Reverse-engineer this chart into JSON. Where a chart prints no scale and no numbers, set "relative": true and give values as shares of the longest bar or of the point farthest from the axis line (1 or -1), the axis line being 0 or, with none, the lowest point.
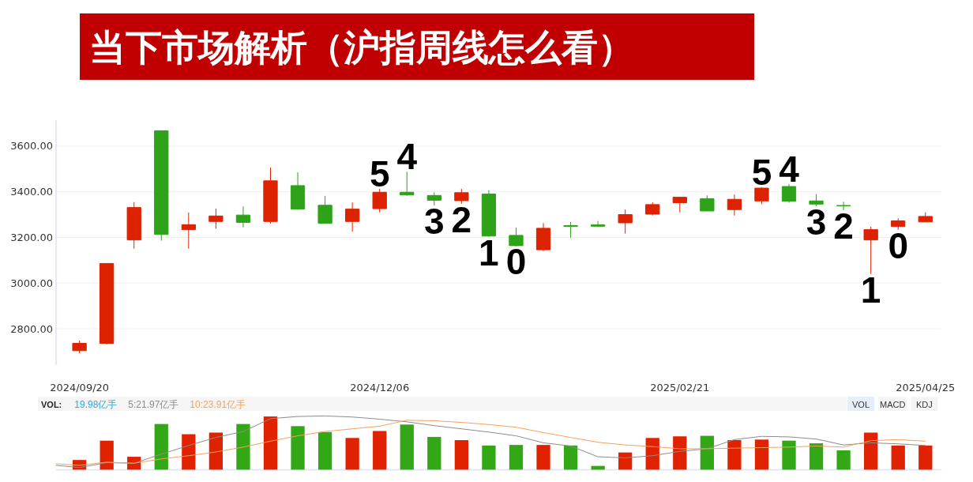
{
  "chart_data": [
    {
      "type": "candlestick",
      "title": "当下市场解析（沪指周线怎么看）",
      "x": [
        "2024-09-20",
        "2024-09-27",
        "2024-10-04",
        "2024-10-11",
        "2024-10-18",
        "2024-10-25",
        "2024-11-01",
        "2024-11-08",
        "2024-11-15",
        "2024-11-22",
        "2024-11-29",
        "2024-12-06",
        "2024-12-13",
        "2024-12-20",
        "2024-12-27",
        "2025-01-03",
        "2025-01-10",
        "2025-01-17",
        "2025-01-24",
        "2025-01-31",
        "2025-02-07",
        "2025-02-14",
        "2025-02-21",
        "2025-02-28",
        "2025-03-07",
        "2025-03-14",
        "2025-03-21",
        "2025-03-28",
        "2025-04-04",
        "2025-04-11",
        "2025-04-18",
        "2025-04-25"
      ],
      "ohlc": [
        [
          2704,
          2748,
          2693,
          2736
        ],
        [
          2736,
          3086,
          2732,
          3086
        ],
        [
          3189,
          3355,
          3151,
          3331
        ],
        [
          3667,
          3667,
          3186,
          3213
        ],
        [
          3235,
          3309,
          3151,
          3256
        ],
        [
          3270,
          3326,
          3238,
          3294
        ],
        [
          3298,
          3336,
          3244,
          3266
        ],
        [
          3270,
          3506,
          3261,
          3448
        ],
        [
          3427,
          3486,
          3322,
          3324
        ],
        [
          3341,
          3382,
          3261,
          3262
        ],
        [
          3270,
          3353,
          3226,
          3324
        ],
        [
          3326,
          3413,
          3310,
          3398
        ],
        [
          3398,
          3488,
          3383,
          3386
        ],
        [
          3384,
          3398,
          3340,
          3363
        ],
        [
          3361,
          3413,
          3348,
          3396
        ],
        [
          3390,
          3407,
          3203,
          3206
        ],
        [
          3209,
          3243,
          3162,
          3164
        ],
        [
          3146,
          3263,
          3141,
          3240
        ],
        [
          3252,
          3268,
          3199,
          3248
        ],
        [
          3255,
          3272,
          3249,
          3249
        ],
        [
          3264,
          3322,
          3217,
          3300
        ],
        [
          3302,
          3354,
          3296,
          3344
        ],
        [
          3352,
          3378,
          3310,
          3376
        ],
        [
          3370,
          3384,
          3316,
          3316
        ],
        [
          3322,
          3388,
          3296,
          3367
        ],
        [
          3360,
          3420,
          3346,
          3416
        ],
        [
          3423,
          3434,
          3352,
          3359
        ],
        [
          3360,
          3390,
          3337,
          3346
        ],
        [
          3340,
          3356,
          3319,
          3338
        ],
        [
          3189,
          3247,
          3040,
          3234
        ],
        [
          3248,
          3284,
          3234,
          3273
        ],
        [
          3268,
          3310,
          3268,
          3292
        ]
      ],
      "colors": [
        "#dd2200",
        "#dd2200",
        "#dd2200",
        "#2ea31a",
        "#dd2200",
        "#dd2200",
        "#2ea31a",
        "#dd2200",
        "#2ea31a",
        "#2ea31a",
        "#dd2200",
        "#dd2200",
        "#2ea31a",
        "#2ea31a",
        "#dd2200",
        "#2ea31a",
        "#2ea31a",
        "#dd2200",
        "#2ea31a",
        "#2ea31a",
        "#dd2200",
        "#dd2200",
        "#dd2200",
        "#2ea31a",
        "#dd2200",
        "#dd2200",
        "#2ea31a",
        "#2ea31a",
        "#2ea31a",
        "#dd2200",
        "#dd2200",
        "#dd2200"
      ],
      "xlim": [
        "2024-09-14",
        "2025-04-29"
      ],
      "xticks": [
        {
          "value": "2024-09-20",
          "label": "2024/09/20"
        },
        {
          "value": "2024-12-06",
          "label": "2024/12/06"
        },
        {
          "value": "2025-02-21",
          "label": "2025/02/21"
        },
        {
          "value": "2025-04-25",
          "label": "2025/04/25"
        }
      ],
      "ylim": [
        2642,
        3715
      ],
      "yticks": [
        {
          "value": 2800,
          "label": "2800.00"
        },
        {
          "value": 3000,
          "label": "3000.00"
        },
        {
          "value": 3200,
          "label": "3200.00"
        },
        {
          "value": 3400,
          "label": "3400.00"
        },
        {
          "value": 3600,
          "label": "3600.00"
        }
      ],
      "grid": "y",
      "annotations": [
        {
          "text": "5",
          "x": "2024-12-06",
          "y": 3413
        },
        {
          "text": "4",
          "x": "2024-12-13",
          "y": 3488
        },
        {
          "text": "3",
          "x": "2024-12-20",
          "y": 3340
        },
        {
          "text": "2",
          "x": "2024-12-27",
          "y": 3348
        },
        {
          "text": "1",
          "x": "2025-01-03",
          "y": 3203
        },
        {
          "text": "0",
          "x": "2025-01-10",
          "y": 3162
        },
        {
          "text": "5",
          "x": "2025-03-14",
          "y": 3420
        },
        {
          "text": "4",
          "x": "2025-03-21",
          "y": 3434
        },
        {
          "text": "3",
          "x": "2025-03-28",
          "y": 3337
        },
        {
          "text": "2",
          "x": "2025-04-04",
          "y": 3319
        },
        {
          "text": "1",
          "x": "2025-04-11",
          "y": 3040
        },
        {
          "text": "0",
          "x": "2025-04-18",
          "y": 3234
        }
      ]
    },
    {
      "type": "bar",
      "relative": true,
      "x": [
        "2024-09-20",
        "2024-09-27",
        "2024-10-04",
        "2024-10-11",
        "2024-10-18",
        "2024-10-25",
        "2024-11-01",
        "2024-11-08",
        "2024-11-15",
        "2024-11-22",
        "2024-11-29",
        "2024-12-06",
        "2024-12-13",
        "2024-12-20",
        "2024-12-27",
        "2025-01-03",
        "2025-01-10",
        "2025-01-17",
        "2025-01-24",
        "2025-01-31",
        "2025-02-07",
        "2025-02-14",
        "2025-02-21",
        "2025-02-28",
        "2025-03-07",
        "2025-03-14",
        "2025-03-21",
        "2025-03-28",
        "2025-04-04",
        "2025-04-11",
        "2025-04-18",
        "2025-04-25"
      ],
      "xlim": [
        "2024-09-14",
        "2025-04-29"
      ],
      "legend": "top left",
      "legend_title": "VOL:",
      "annotations": [
        "19.98亿手",
        "VOL",
        "MACD",
        "KDJ"
      ],
      "series": [
        {
          "colors": [
            "#e02200",
            "#e02200",
            "#e02200",
            "#33a816",
            "#e02200",
            "#e02200",
            "#33a816",
            "#e02200",
            "#33a816",
            "#33a816",
            "#e02200",
            "#e02200",
            "#33a816",
            "#33a816",
            "#e02200",
            "#33a816",
            "#33a816",
            "#e02200",
            "#33a816",
            "#33a816",
            "#e02200",
            "#e02200",
            "#e02200",
            "#33a816",
            "#e02200",
            "#e02200",
            "#33a816",
            "#33a816",
            "#33a816",
            "#e02200",
            "#e02200",
            "#e02200"
          ],
          "values": [
            0.18,
            0.54,
            0.24,
            0.85,
            0.66,
            0.69,
            0.85,
            0.99,
            0.81,
            0.7,
            0.59,
            0.72,
            0.84,
            0.61,
            0.55,
            0.45,
            0.46,
            0.46,
            0.45,
            0.07,
            0.32,
            0.59,
            0.62,
            0.63,
            0.55,
            0.56,
            0.54,
            0.49,
            0.36,
            0.69,
            0.45,
            0.45
          ]
        },
        {
          "type": "line",
          "name": "5:21.97亿手",
          "color": "#8c8c8c",
          "x": [
            "2024-09-14",
            "2024-09-20",
            "2024-09-27",
            "2024-10-04",
            "2024-10-11",
            "2024-10-18",
            "2024-10-25",
            "2024-11-01",
            "2024-11-08",
            "2024-11-15",
            "2024-11-22",
            "2024-11-29",
            "2024-12-06",
            "2024-12-13",
            "2024-12-20",
            "2024-12-27",
            "2025-01-03",
            "2025-01-10",
            "2025-01-17",
            "2025-01-24",
            "2025-01-31",
            "2025-02-07",
            "2025-02-14",
            "2025-02-21",
            "2025-02-28",
            "2025-03-07",
            "2025-03-14",
            "2025-03-21",
            "2025-03-28",
            "2025-04-04",
            "2025-04-11",
            "2025-04-18",
            "2025-04-25"
          ],
          "values": [
            0.08,
            0.04,
            0.13,
            0.12,
            0.29,
            0.45,
            0.6,
            0.71,
            0.95,
            0.99,
            1.0,
            0.98,
            0.94,
            0.89,
            0.82,
            0.76,
            0.7,
            0.63,
            0.5,
            0.44,
            0.24,
            0.22,
            0.26,
            0.34,
            0.39,
            0.56,
            0.62,
            0.61,
            0.57,
            0.46,
            0.5,
            0.48,
            0.45
          ]
        },
        {
          "type": "line",
          "name": "10:23.91亿手",
          "color": "#f5a25d",
          "x": [
            "2024-09-14",
            "2024-09-20",
            "2024-09-27",
            "2024-10-04",
            "2024-10-11",
            "2024-10-18",
            "2024-10-25",
            "2024-11-01",
            "2024-11-08",
            "2024-11-15",
            "2024-11-22",
            "2024-11-29",
            "2024-12-06",
            "2024-12-13",
            "2024-12-20",
            "2024-12-27",
            "2025-01-03",
            "2025-01-10",
            "2025-01-17",
            "2025-01-24",
            "2025-01-31",
            "2025-02-07",
            "2025-02-14",
            "2025-02-21",
            "2025-02-28",
            "2025-03-07",
            "2025-03-14",
            "2025-03-21",
            "2025-03-28",
            "2025-04-04",
            "2025-04-11",
            "2025-04-18",
            "2025-04-25"
          ],
          "values": [
            0.11,
            0.08,
            0.14,
            0.12,
            0.2,
            0.26,
            0.33,
            0.42,
            0.53,
            0.63,
            0.71,
            0.76,
            0.81,
            0.92,
            0.91,
            0.88,
            0.84,
            0.79,
            0.69,
            0.6,
            0.51,
            0.46,
            0.43,
            0.39,
            0.39,
            0.4,
            0.41,
            0.42,
            0.44,
            0.42,
            0.54,
            0.56,
            0.53
          ]
        }
      ]
    }
  ]
}
